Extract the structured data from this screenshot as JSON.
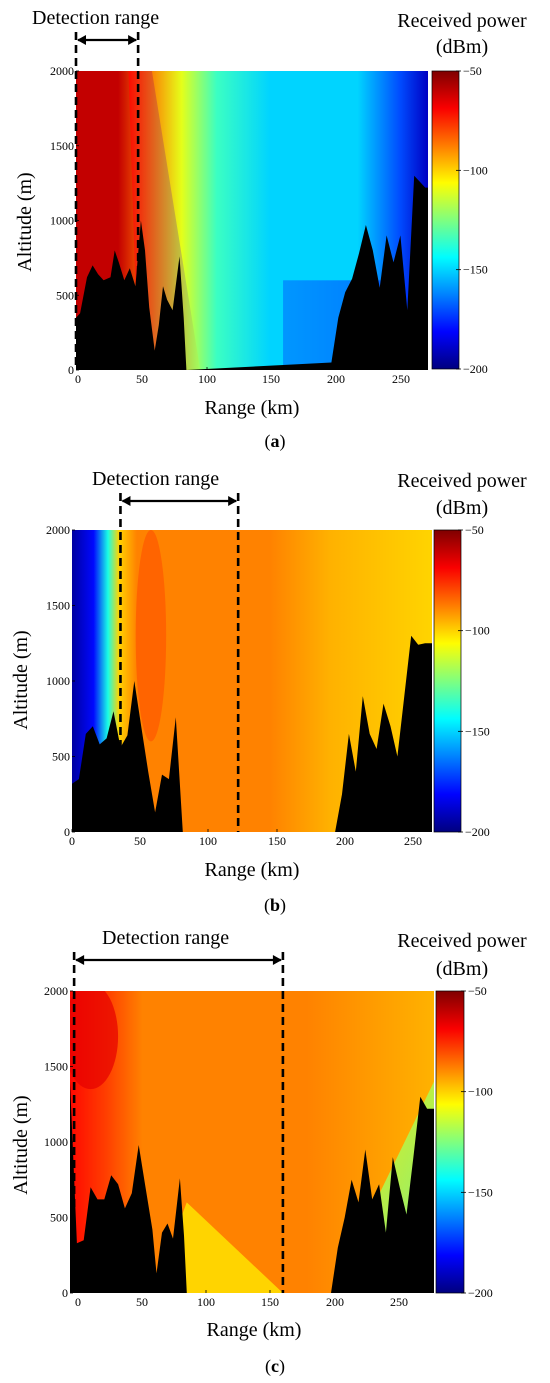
{
  "figure": {
    "colorbar_title_line1": "Received power",
    "colorbar_title_line2": "(dBm)",
    "detection_label": "Detection range",
    "xlabel": "Range (km)",
    "ylabel": "Altitude (m)",
    "colors": {
      "terrain": "#000000",
      "jet": [
        "#00007f",
        "#0000ff",
        "#007fff",
        "#00ffff",
        "#7fff7f",
        "#ffff00",
        "#ff7f00",
        "#ff0000",
        "#7f0000"
      ]
    }
  },
  "chart_data": [
    {
      "type": "heatmap",
      "panel": "(a)",
      "panel_letter": "a",
      "xlabel": "Range (km)",
      "ylabel": "Altitude (m)",
      "xlim": [
        0,
        255
      ],
      "ylim": [
        0,
        2000
      ],
      "x_ticks": [
        "0",
        "50",
        "100",
        "150",
        "200",
        "250"
      ],
      "y_ticks": [
        "0",
        "500",
        "1000",
        "1500",
        "2000"
      ],
      "colorbar": {
        "title": "Received power (dBm)",
        "min": -200,
        "max": -50,
        "ticks": [
          "-50",
          "-100",
          "-150",
          "-200"
        ]
      },
      "detection_range_km": [
        0,
        45
      ],
      "field": {
        "left_level_dbm": -60,
        "right_level_dbm": -150,
        "transition_km": [
          45,
          95
        ],
        "far_edge_dbm": -190
      },
      "terrain_profile": {
        "x_km": [
          0,
          3,
          8,
          12,
          16,
          20,
          25,
          28,
          31,
          35,
          39,
          43,
          47,
          50,
          53,
          57,
          60,
          63,
          66,
          70,
          75,
          78,
          80,
          185,
          190,
          195,
          200,
          205,
          210,
          215,
          220,
          225,
          230,
          235,
          240,
          245,
          250,
          253,
          255
        ],
        "altitude_m": [
          350,
          380,
          620,
          700,
          640,
          600,
          620,
          800,
          720,
          600,
          680,
          560,
          1000,
          800,
          420,
          130,
          300,
          560,
          470,
          400,
          760,
          350,
          0,
          50,
          350,
          520,
          610,
          780,
          970,
          800,
          550,
          900,
          720,
          900,
          400,
          1300,
          1250,
          1220,
          1220
        ]
      }
    },
    {
      "type": "heatmap",
      "panel": "(b)",
      "panel_letter": "b",
      "xlabel": "Range (km)",
      "ylabel": "Altitude (m)",
      "xlim": [
        0,
        260
      ],
      "ylim": [
        0,
        2000
      ],
      "x_ticks": [
        "0",
        "50",
        "100",
        "150",
        "200",
        "250"
      ],
      "y_ticks": [
        "0",
        "500",
        "1000",
        "1500",
        "2000"
      ],
      "colorbar": {
        "title": "Received power (dBm)",
        "min": -200,
        "max": -50,
        "ticks": [
          "-50",
          "-100",
          "-150",
          "-200"
        ]
      },
      "detection_range_km": [
        35,
        120
      ],
      "field": {
        "blocked_band_km": [
          0,
          22
        ],
        "blocked_dbm": -195,
        "main_level_dbm": -88,
        "far_level_dbm": -100
      },
      "terrain_profile": {
        "x_km": [
          0,
          5,
          10,
          15,
          20,
          25,
          30,
          35,
          40,
          45,
          50,
          55,
          60,
          65,
          70,
          75,
          80,
          190,
          195,
          200,
          205,
          210,
          215,
          220,
          225,
          230,
          235,
          240,
          245,
          250,
          255,
          260
        ],
        "altitude_m": [
          320,
          350,
          650,
          700,
          580,
          620,
          800,
          560,
          640,
          1000,
          700,
          400,
          130,
          380,
          350,
          760,
          0,
          0,
          250,
          650,
          400,
          900,
          650,
          550,
          850,
          700,
          500,
          900,
          1300,
          1240,
          1250,
          1250
        ]
      }
    },
    {
      "type": "heatmap",
      "panel": "(c)",
      "panel_letter": "c",
      "xlabel": "Range (km)",
      "ylabel": "Altitude (m)",
      "xlim": [
        -5,
        260
      ],
      "ylim": [
        0,
        2000
      ],
      "x_ticks": [
        "0",
        "50",
        "100",
        "150",
        "200",
        "250"
      ],
      "y_ticks": [
        "0",
        "500",
        "1000",
        "1500",
        "2000"
      ],
      "colorbar": {
        "title": "Received power (dBm)",
        "min": -200,
        "max": -50,
        "ticks": [
          "-50",
          "-100",
          "-150",
          "-200"
        ]
      },
      "detection_range_km": [
        -2,
        150
      ],
      "field": {
        "near_level_dbm": -70,
        "main_level_dbm": -88,
        "far_level_dbm": -95,
        "shadow_edge_dbm": -130
      },
      "terrain_profile": {
        "x_km": [
          -5,
          0,
          5,
          10,
          15,
          20,
          25,
          30,
          35,
          40,
          45,
          50,
          55,
          58,
          62,
          66,
          70,
          75,
          78,
          80,
          185,
          190,
          195,
          200,
          205,
          210,
          215,
          220,
          225,
          230,
          235,
          240,
          245,
          250,
          255,
          260
        ],
        "altitude_m": [
          1400,
          330,
          350,
          700,
          620,
          620,
          780,
          720,
          560,
          660,
          980,
          700,
          420,
          130,
          400,
          460,
          360,
          760,
          380,
          0,
          0,
          300,
          500,
          750,
          600,
          950,
          620,
          720,
          400,
          900,
          700,
          520,
          900,
          1300,
          1220,
          1220
        ]
      }
    }
  ]
}
